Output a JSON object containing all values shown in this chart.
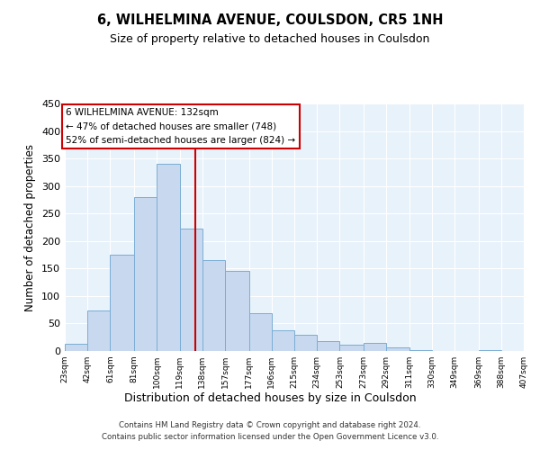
{
  "title": "6, WILHELMINA AVENUE, COULSDON, CR5 1NH",
  "subtitle": "Size of property relative to detached houses in Coulsdon",
  "xlabel": "Distribution of detached houses by size in Coulsdon",
  "ylabel": "Number of detached properties",
  "bar_color": "#c8d9ef",
  "bar_edge_color": "#7aadd4",
  "background_color": "#e8f2fa",
  "grid_color": "#ffffff",
  "vline_value": 132,
  "vline_color": "#cc0000",
  "annotation_title": "6 WILHELMINA AVENUE: 132sqm",
  "annotation_line1": "← 47% of detached houses are smaller (748)",
  "annotation_line2": "52% of semi-detached houses are larger (824) →",
  "annotation_box_color": "#ffffff",
  "annotation_box_edge": "#cc0000",
  "bin_edges": [
    23,
    42,
    61,
    81,
    100,
    119,
    138,
    157,
    177,
    196,
    215,
    234,
    253,
    273,
    292,
    311,
    330,
    349,
    369,
    388,
    407
  ],
  "bin_heights": [
    13,
    74,
    175,
    280,
    340,
    222,
    165,
    145,
    69,
    37,
    29,
    18,
    12,
    15,
    7,
    1,
    0,
    0,
    1,
    0
  ],
  "tick_labels": [
    "23sqm",
    "42sqm",
    "61sqm",
    "81sqm",
    "100sqm",
    "119sqm",
    "138sqm",
    "157sqm",
    "177sqm",
    "196sqm",
    "215sqm",
    "234sqm",
    "253sqm",
    "273sqm",
    "292sqm",
    "311sqm",
    "330sqm",
    "349sqm",
    "369sqm",
    "388sqm",
    "407sqm"
  ],
  "ylim": [
    0,
    450
  ],
  "yticks": [
    0,
    50,
    100,
    150,
    200,
    250,
    300,
    350,
    400,
    450
  ],
  "footer1": "Contains HM Land Registry data © Crown copyright and database right 2024.",
  "footer2": "Contains public sector information licensed under the Open Government Licence v3.0."
}
